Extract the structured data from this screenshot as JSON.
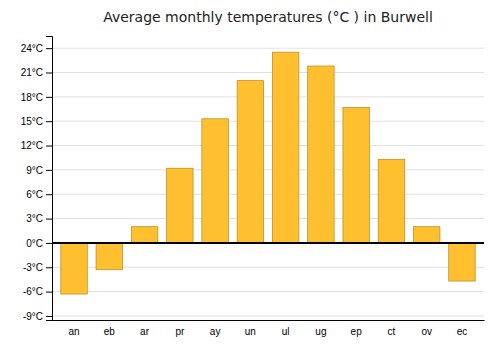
{
  "chart_data": {
    "type": "bar",
    "title": "Average monthly temperatures (°C ) in Burwell",
    "categories": [
      "an",
      "eb",
      "ar",
      "pr",
      "ay",
      "un",
      "ul",
      "ug",
      "ep",
      "ct",
      "ov",
      "ec"
    ],
    "values": [
      -6.3,
      -3.3,
      2.0,
      9.2,
      15.3,
      20.0,
      23.5,
      21.8,
      16.7,
      10.3,
      2.0,
      -4.7
    ],
    "color": "#FFC030",
    "ylim": [
      -9.5,
      25.5
    ],
    "yticks": [
      {
        "value": -9,
        "label": "-9°C"
      },
      {
        "value": -6,
        "label": "-6°C"
      },
      {
        "value": -3,
        "label": "-3°C"
      },
      {
        "value": 0,
        "label": "0°C"
      },
      {
        "value": 3,
        "label": "3°C"
      },
      {
        "value": 6,
        "label": "6°C"
      },
      {
        "value": 9,
        "label": "9°C"
      },
      {
        "value": 12,
        "label": "12°C"
      },
      {
        "value": 15,
        "label": "15°C"
      },
      {
        "value": 18,
        "label": "18°C"
      },
      {
        "value": 21,
        "label": "21°C"
      },
      {
        "value": 24,
        "label": "24°C"
      }
    ],
    "grid": true
  }
}
